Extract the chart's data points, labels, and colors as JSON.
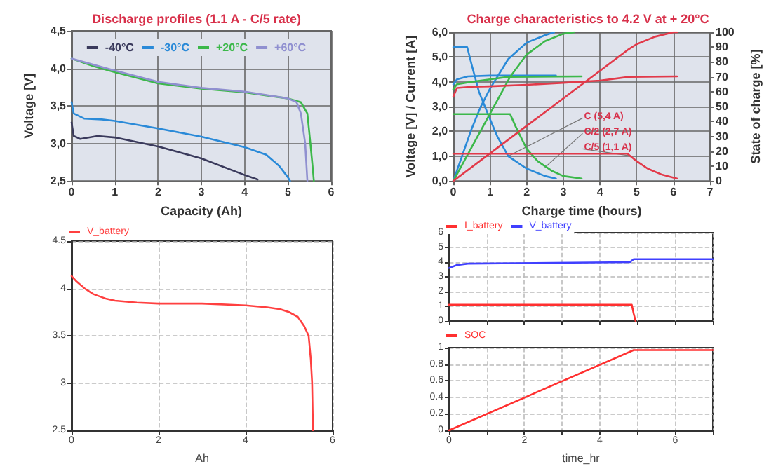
{
  "chart_data": [
    {
      "type": "line",
      "title": "Discharge profiles (1.1 A - C/5 rate)",
      "xlabel": "Capacity (Ah)",
      "ylabel": "Voltage [V]",
      "xlim": [
        0,
        6
      ],
      "xticks": [
        0,
        1,
        2,
        3,
        4,
        5,
        6
      ],
      "ylim": [
        2.5,
        4.5
      ],
      "yticks": [
        {
          "value": 2.5,
          "label": "2,5"
        },
        {
          "value": 3,
          "label": "3,0"
        },
        {
          "value": 3.5,
          "label": "3,5"
        },
        {
          "value": 4,
          "label": "4,0"
        },
        {
          "value": 4.5,
          "label": "4,5"
        }
      ],
      "grid": true,
      "legend": "top",
      "series": [
        {
          "name": "-40°C",
          "color": "#3a3a5c",
          "x": [
            0,
            0.05,
            0.2,
            0.6,
            1,
            2,
            3,
            4,
            4.3
          ],
          "values": [
            3.28,
            3.1,
            3.06,
            3.1,
            3.08,
            2.96,
            2.8,
            2.58,
            2.52
          ]
        },
        {
          "name": "-30°C",
          "color": "#2a8ad8",
          "x": [
            0,
            0.05,
            0.3,
            0.7,
            1,
            2,
            3,
            4,
            4.5,
            4.8,
            5,
            5.05
          ],
          "values": [
            3.55,
            3.4,
            3.33,
            3.32,
            3.3,
            3.2,
            3.09,
            2.95,
            2.85,
            2.7,
            2.55,
            2.5
          ]
        },
        {
          "name": "+20°C",
          "color": "#3cb84a",
          "x": [
            0,
            0.5,
            1,
            2,
            3,
            4,
            4.5,
            5,
            5.3,
            5.45,
            5.52,
            5.57,
            5.6
          ],
          "values": [
            4.13,
            4.03,
            3.95,
            3.8,
            3.73,
            3.68,
            3.64,
            3.6,
            3.55,
            3.4,
            3.0,
            2.7,
            2.5
          ]
        },
        {
          "name": "+60°C",
          "color": "#9090d0",
          "x": [
            0,
            1,
            2,
            3,
            4,
            5,
            5.2,
            5.3,
            5.4,
            5.45
          ],
          "values": [
            4.13,
            3.97,
            3.82,
            3.74,
            3.69,
            3.6,
            3.55,
            3.4,
            3.0,
            2.5
          ]
        }
      ]
    },
    {
      "type": "line",
      "title": "Charge characteristics to 4.2 V at + 20°C",
      "xlabel": "Charge time (hours)",
      "ylabel": "Voltage [V] / Current [A]",
      "y2label": "State of charge [%]",
      "xlim": [
        0,
        7
      ],
      "xticks": [
        0,
        1,
        2,
        3,
        4,
        5,
        6,
        7
      ],
      "ylim": [
        0,
        6
      ],
      "yticks": [
        {
          "value": 0,
          "label": "0,0"
        },
        {
          "value": 1,
          "label": "1,0"
        },
        {
          "value": 2,
          "label": "2,0"
        },
        {
          "value": 3,
          "label": "3,0"
        },
        {
          "value": 4,
          "label": "4,0"
        },
        {
          "value": 5,
          "label": "5,0"
        },
        {
          "value": 6,
          "label": "6,0"
        }
      ],
      "y2lim": [
        0,
        100
      ],
      "y2ticks": [
        0,
        10,
        20,
        30,
        40,
        50,
        60,
        70,
        80,
        90,
        100
      ],
      "grid": true,
      "annotations": [
        {
          "text": "C (5,4 A)",
          "x": 1.5,
          "y": 1.0
        },
        {
          "text": "C/2 (2,7 A)",
          "x": 2.5,
          "y": 0.55
        },
        {
          "text": "C/5 (1,1 A)",
          "x": 4.9,
          "y": 1.0
        }
      ],
      "series": [
        {
          "color": "#2a8ad8",
          "x": [
            0,
            0.38,
            0.5,
            0.7,
            1,
            1.2,
            1.5,
            2,
            2.5,
            2.8
          ],
          "values": [
            5.4,
            5.4,
            4.7,
            3.6,
            2.5,
            1.8,
            1.0,
            0.5,
            0.2,
            0.1
          ]
        },
        {
          "color": "#2a8ad8",
          "x": [
            0,
            0.1,
            0.4,
            1,
            2.8
          ],
          "values": [
            3.9,
            4.1,
            4.22,
            4.25,
            4.25
          ]
        },
        {
          "color": "#2a8ad8",
          "axis": "y2",
          "x": [
            0,
            0.5,
            0.75,
            1,
            1.5,
            2,
            2.5,
            2.75
          ],
          "values": [
            0,
            35,
            50,
            62,
            82,
            93,
            98,
            100
          ]
        },
        {
          "color": "#3cb84a",
          "x": [
            0,
            1.55,
            1.7,
            2,
            2.3,
            2.7,
            3,
            3.5
          ],
          "values": [
            2.7,
            2.7,
            2.2,
            1.3,
            0.8,
            0.4,
            0.2,
            0.1
          ]
        },
        {
          "color": "#3cb84a",
          "x": [
            0,
            0.1,
            0.5,
            1,
            1.5,
            3.5
          ],
          "values": [
            3.7,
            3.9,
            4.0,
            4.1,
            4.2,
            4.22
          ]
        },
        {
          "color": "#3cb84a",
          "axis": "y2",
          "x": [
            0,
            1.55,
            2,
            2.5,
            3,
            3.3
          ],
          "values": [
            0,
            70,
            85,
            94,
            99,
            100
          ]
        },
        {
          "color": "#e23a4a",
          "x": [
            0,
            4.75,
            5,
            5.3,
            5.7,
            6.1
          ],
          "values": [
            1.1,
            1.1,
            0.8,
            0.5,
            0.25,
            0.1
          ]
        },
        {
          "color": "#e23a4a",
          "x": [
            0,
            0.1,
            0.5,
            1,
            2,
            3,
            4,
            4.8,
            6.1
          ],
          "values": [
            3.4,
            3.75,
            3.8,
            3.82,
            3.88,
            3.96,
            4.05,
            4.2,
            4.22
          ]
        },
        {
          "color": "#e23a4a",
          "axis": "y2",
          "x": [
            0,
            4.75,
            5,
            5.5,
            6,
            6.1
          ],
          "values": [
            0,
            88,
            92,
            97,
            100,
            100
          ]
        }
      ]
    },
    {
      "type": "line",
      "xlabel": "Ah",
      "xlim": [
        0,
        6
      ],
      "xticks": [
        0,
        2,
        4,
        6
      ],
      "ylim": [
        2.5,
        4.5
      ],
      "yticks": [
        2.5,
        3,
        3.5,
        4,
        4.5
      ],
      "grid": true,
      "legend": "top left",
      "series": [
        {
          "name": "V_battery",
          "color": "#ff4040",
          "x": [
            0,
            0.1,
            0.3,
            0.5,
            0.8,
            1,
            1.5,
            2,
            3,
            4,
            4.5,
            4.8,
            5,
            5.2,
            5.35,
            5.45,
            5.5,
            5.53,
            5.55
          ],
          "values": [
            4.13,
            4.08,
            4.0,
            3.94,
            3.89,
            3.87,
            3.85,
            3.84,
            3.84,
            3.82,
            3.8,
            3.78,
            3.75,
            3.7,
            3.6,
            3.5,
            3.25,
            3.0,
            2.5
          ]
        }
      ]
    },
    {
      "type": "line",
      "xlim": [
        0,
        7
      ],
      "xticks": [
        0,
        {
          "value": 1,
          "label": null
        },
        2,
        {
          "value": 3,
          "label": null
        },
        4,
        {
          "value": 5,
          "label": null
        },
        6,
        {
          "value": 7,
          "label": null
        }
      ],
      "ylim": [
        0,
        6
      ],
      "yticks": [
        0,
        1,
        2,
        3,
        4,
        5,
        6
      ],
      "grid": true,
      "legend": "top left",
      "tick_labels": "y",
      "series": [
        {
          "name": "I_battery",
          "color": "#ff3030",
          "x": [
            0,
            4.85,
            4.9,
            4.95
          ],
          "values": [
            1.1,
            1.1,
            0.5,
            0
          ]
        },
        {
          "name": "V_battery",
          "color": "#4040ff",
          "x": [
            0,
            0.2,
            0.5,
            4.8,
            4.9,
            7
          ],
          "values": [
            3.6,
            3.8,
            3.9,
            4.0,
            4.2,
            4.2
          ]
        }
      ]
    },
    {
      "type": "line",
      "xlabel": "time_hr",
      "xlim": [
        0,
        7
      ],
      "xticks": [
        0,
        {
          "value": 1,
          "label": null
        },
        2,
        {
          "value": 3,
          "label": null
        },
        4,
        {
          "value": 5,
          "label": null
        },
        6,
        {
          "value": 7,
          "label": null
        }
      ],
      "ylim": [
        0,
        1
      ],
      "yticks": [
        0,
        0.2,
        0.4,
        0.6,
        0.8,
        1
      ],
      "grid": true,
      "legend": "top left",
      "series": [
        {
          "name": "SOC",
          "color": "#ff3030",
          "x": [
            0,
            4.9,
            7
          ],
          "values": [
            0,
            0.97,
            0.97
          ]
        }
      ]
    }
  ]
}
